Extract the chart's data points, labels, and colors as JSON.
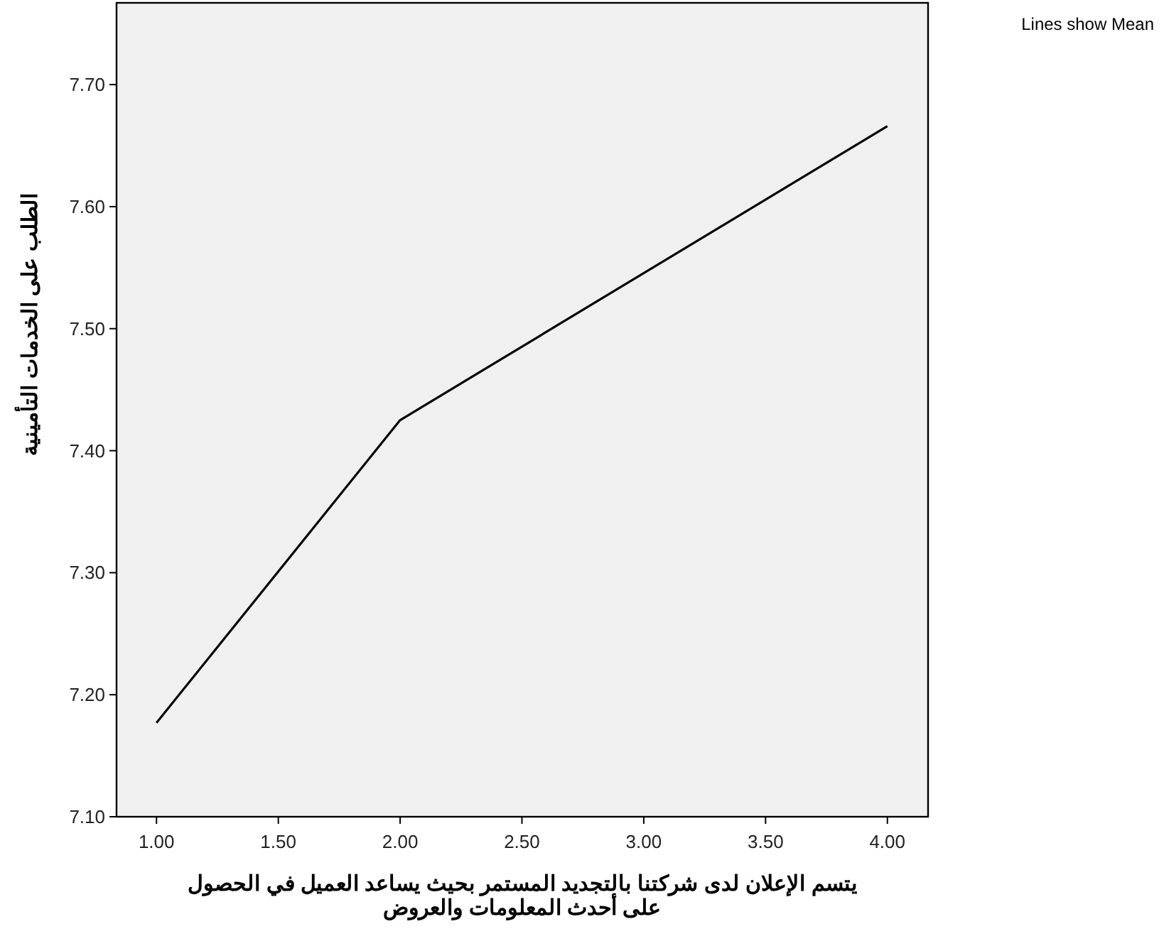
{
  "chart_data": {
    "type": "line",
    "xlabel": "يتسم الإعلان لدى شركتنا بالتجديد المستمر بحيث يساعد العميل في الحصول\nعلى أحدث المعلومات والعروض",
    "ylabel": "الطلب  على الخدمات التأمينية",
    "annotations": [
      "Lines show Mean"
    ],
    "x": [
      1,
      2,
      4
    ],
    "series": [
      {
        "color": "#000000",
        "values": [
          7.177,
          7.425,
          7.666
        ]
      }
    ],
    "xlim": [
      0.836,
      4.167
    ],
    "ylim": [
      7.1,
      7.767
    ],
    "xticks": [
      {
        "value": 1,
        "label": "1.00"
      },
      {
        "value": 1.5,
        "label": "1.50"
      },
      {
        "value": 2,
        "label": "2.00"
      },
      {
        "value": 2.5,
        "label": "2.50"
      },
      {
        "value": 3,
        "label": "3.00"
      },
      {
        "value": 3.5,
        "label": "3.50"
      },
      {
        "value": 4,
        "label": "4.00"
      }
    ],
    "yticks": [
      {
        "value": 7.1,
        "label": "7.10"
      },
      {
        "value": 7.2,
        "label": "7.20"
      },
      {
        "value": 7.3,
        "label": "7.30"
      },
      {
        "value": 7.4,
        "label": "7.40"
      },
      {
        "value": 7.5,
        "label": "7.50"
      },
      {
        "value": 7.6,
        "label": "7.60"
      },
      {
        "value": 7.7,
        "label": "7.70"
      }
    ]
  }
}
